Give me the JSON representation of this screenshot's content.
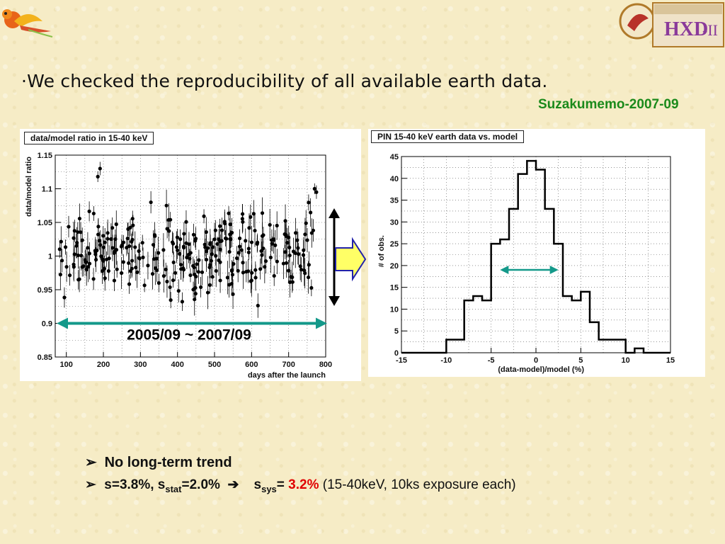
{
  "headline": "·We checked the reproducibility of all available earth data.",
  "memo": "Suzakumemo-2007-09",
  "logos": {
    "left": "bird-logo",
    "right": "HXD logo"
  },
  "period_label": "2005/09 ~ 2007/09",
  "bullets": {
    "b1": "No long-term trend",
    "b2_a": "s=3.8%, s",
    "b2_a_sub": "stat",
    "b2_b": "=2.0%",
    "b2_c": "s",
    "b2_c_sub": "sys",
    "b2_d": "= ",
    "b2_red": "3.2%",
    "b2_e": " (15-40keV, 10ks exposure each)"
  },
  "colors": {
    "teal": "#14998a",
    "arrow_fill": "#ffff66",
    "arrow_stroke": "#2222aa",
    "red": "#e00000",
    "memo_green": "#1b8a1b"
  },
  "chart_data": [
    {
      "type": "scatter",
      "title": "data/model ratio in 15-40 keV",
      "xlabel": "days after the launch",
      "ylabel": "data/model ratio",
      "xlim": [
        70,
        800
      ],
      "ylim": [
        0.85,
        1.15
      ],
      "xticks": [
        100,
        200,
        300,
        400,
        500,
        600,
        700,
        800
      ],
      "yticks": [
        0.85,
        0.9,
        0.95,
        1,
        1.05,
        1.1,
        1.15
      ],
      "ytick_labels": [
        "0.85",
        "0.9",
        "0.95",
        "1",
        "1.05",
        "1.1",
        "1.15"
      ],
      "grid": true,
      "note": "approximately 300 points with error bars, scattered around 1.0 (range ~0.91-1.12)"
    },
    {
      "type": "bar",
      "title": "PIN 15-40 keV earth data vs. model",
      "xlabel": "(data-model)/model (%)",
      "ylabel": "# of obs.",
      "xlim": [
        -15,
        15
      ],
      "ylim": [
        0,
        45
      ],
      "xticks": [
        -15,
        -10,
        -5,
        0,
        5,
        10,
        15
      ],
      "yticks": [
        0,
        5,
        10,
        15,
        20,
        25,
        30,
        35,
        40,
        45
      ],
      "grid": true,
      "bin_edges": [
        -15,
        -14,
        -13,
        -12,
        -11,
        -10,
        -9,
        -8,
        -7,
        -6,
        -5,
        -4,
        -3,
        -2,
        -1,
        0,
        1,
        2,
        3,
        4,
        5,
        6,
        7,
        8,
        9,
        10,
        11,
        12,
        13,
        14,
        15
      ],
      "values": [
        0,
        0,
        0,
        0,
        0,
        3,
        3,
        12,
        13,
        12,
        25,
        26,
        33,
        41,
        44,
        42,
        33,
        25,
        13,
        12,
        14,
        7,
        3,
        3,
        3,
        0,
        1,
        0,
        0,
        0
      ]
    }
  ]
}
